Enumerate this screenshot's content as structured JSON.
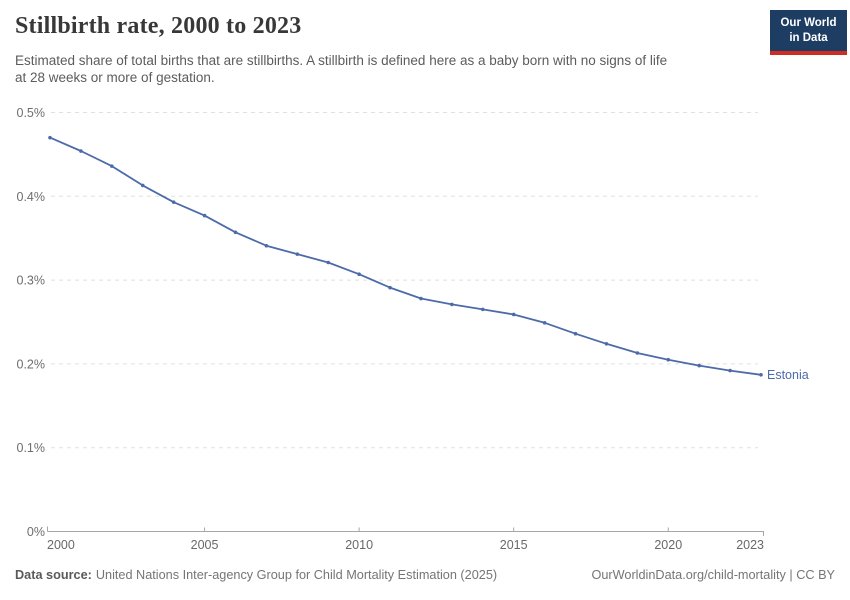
{
  "header": {
    "title": "Stillbirth rate, 2000 to 2023",
    "subtitle_lines": [
      "Estimated share of total births that are stillbirths. A stillbirth is defined here as a baby born with no signs of life",
      "at 28 weeks or more of gestation."
    ],
    "logo": {
      "line1": "Our World",
      "line2": "in Data",
      "bg_color": "#1d3d63",
      "stripe_color": "#cf2d24",
      "text_color": "#ffffff"
    }
  },
  "chart_data": {
    "type": "line",
    "title": "Stillbirth rate, 2000 to 2023",
    "xlabel": "",
    "ylabel": "",
    "unit": "%",
    "xlim": [
      2000,
      2023
    ],
    "ylim": [
      0,
      0.5
    ],
    "grid": "horizontal-dashed",
    "legend_position": "end-of-line-label",
    "x": [
      2000,
      2001,
      2002,
      2003,
      2004,
      2005,
      2006,
      2007,
      2008,
      2009,
      2010,
      2011,
      2012,
      2013,
      2014,
      2015,
      2016,
      2017,
      2018,
      2019,
      2020,
      2021,
      2022,
      2023
    ],
    "series": [
      {
        "name": "Estonia",
        "color": "#4c6ba8",
        "values": [
          0.47,
          0.454,
          0.436,
          0.413,
          0.393,
          0.377,
          0.357,
          0.341,
          0.331,
          0.321,
          0.307,
          0.291,
          0.278,
          0.271,
          0.265,
          0.259,
          0.249,
          0.236,
          0.224,
          0.213,
          0.205,
          0.198,
          0.192,
          0.187
        ]
      }
    ],
    "xticks": [
      {
        "value": 2000,
        "label": "2000"
      },
      {
        "value": 2005,
        "label": "2005"
      },
      {
        "value": 2010,
        "label": "2010"
      },
      {
        "value": 2015,
        "label": "2015"
      },
      {
        "value": 2020,
        "label": "2020"
      },
      {
        "value": 2023,
        "label": "2023"
      }
    ],
    "yticks": [
      {
        "value": 0,
        "label": "0%"
      },
      {
        "value": 0.1,
        "label": "0.1%"
      },
      {
        "value": 0.2,
        "label": "0.2%"
      },
      {
        "value": 0.3,
        "label": "0.3%"
      },
      {
        "value": 0.4,
        "label": "0.4%"
      },
      {
        "value": 0.5,
        "label": "0.5%"
      }
    ],
    "colors": {
      "grid": "#e0e0e0",
      "axis": "#a6a6a6",
      "tick_text": "#6e6e6e"
    }
  },
  "footer": {
    "source_label": "Data source:",
    "source_text": "United Nations Inter-agency Group for Child Mortality Estimation (2025)",
    "link_text": "OurWorldinData.org/child-mortality | CC BY"
  }
}
